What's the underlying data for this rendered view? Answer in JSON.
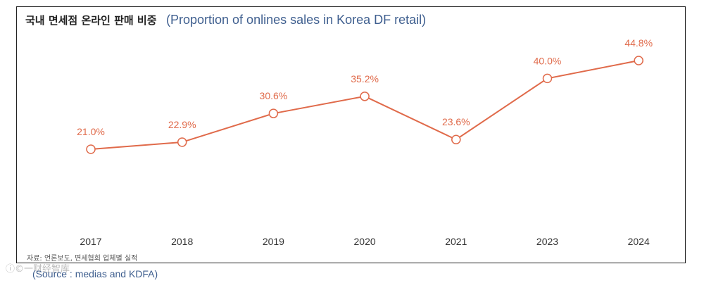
{
  "header": {
    "title_ko": "국내 면세점 온라인 판매 비중",
    "title_en": "(Proportion of onlines sales in Korea DF retail)"
  },
  "footer": {
    "source_ko": "자료: 언론보도, 면세협회 업체별 실적",
    "source_en": "(Source : medias and KDFA)",
    "watermark": "ⓘ©一财经智库"
  },
  "colors": {
    "line": "#e06a4a",
    "label": "#e06a4a",
    "axis_text": "#333333",
    "marker_fill": "#ffffff"
  },
  "chart_data": {
    "type": "line",
    "title": "국내 면세점 온라인 판매 비중",
    "categories": [
      "2017",
      "2018",
      "2019",
      "2020",
      "2021",
      "2023",
      "2024"
    ],
    "values": [
      21.0,
      22.9,
      30.6,
      35.2,
      23.6,
      40.0,
      44.8
    ],
    "labels": [
      "21.0%",
      "22.9%",
      "30.6%",
      "35.2%",
      "23.6%",
      "40.0%",
      "44.8%"
    ],
    "unit": "%",
    "grid": false,
    "legend": "none"
  }
}
